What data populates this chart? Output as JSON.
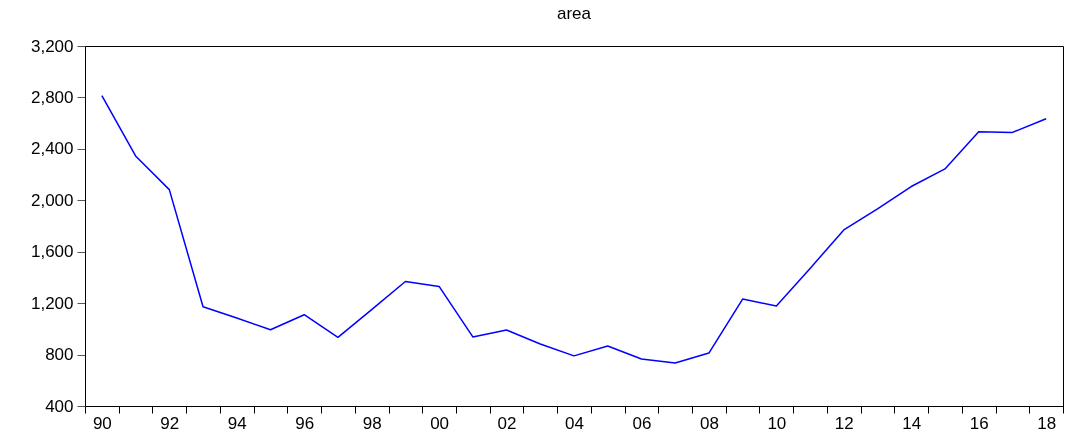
{
  "chart_data": {
    "type": "line",
    "title": "area",
    "categories": [
      "90",
      null,
      "92",
      null,
      "94",
      null,
      "96",
      null,
      "98",
      null,
      "00",
      null,
      "02",
      null,
      "04",
      null,
      "06",
      null,
      "08",
      null,
      "10",
      null,
      "12",
      null,
      "14",
      null,
      "16",
      null,
      "18"
    ],
    "series": [
      {
        "color": "#0000ff",
        "values": [
          2814,
          2345,
          2083,
          1172,
          1085,
          993,
          1110,
          934,
          1150,
          1368,
          1330,
          937,
          991,
          882,
          790,
          867,
          766,
          735,
          812,
          1232,
          1178,
          1470,
          1769,
          1933,
          2107,
          2244,
          2533,
          2528,
          2634
        ]
      }
    ],
    "ylim": [
      400,
      3200
    ],
    "yticks": [
      400,
      800,
      {
        "value": 1200,
        "label": "1,200"
      },
      {
        "value": 1600,
        "label": "1,600"
      },
      {
        "value": 2000,
        "label": "2,000"
      },
      {
        "value": 2400,
        "label": "2,400"
      },
      {
        "value": 2800,
        "label": "2,800"
      },
      {
        "value": 3200,
        "label": "3,200"
      }
    ],
    "grid": false
  }
}
